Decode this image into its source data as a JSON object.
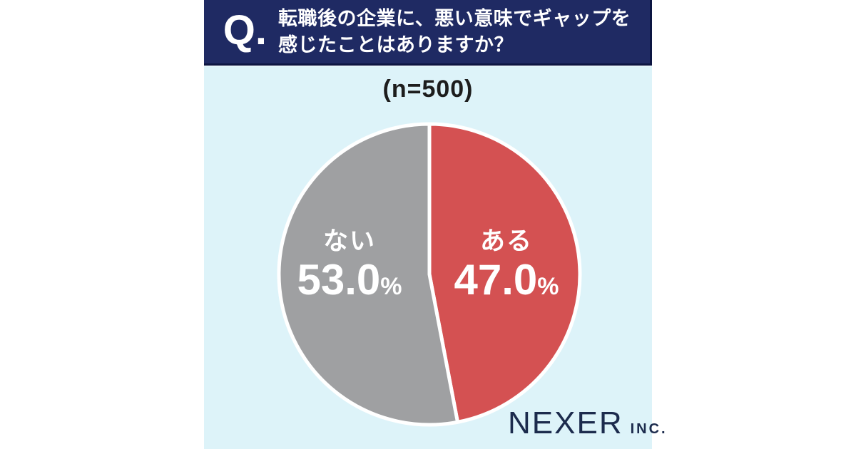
{
  "header": {
    "q_label": "Q.",
    "question_line1": "転職後の企業に、悪い意味でギャップを",
    "question_line2": "感じたことはありますか？"
  },
  "sample_size_label": "(n=500)",
  "chart_data": {
    "type": "pie",
    "title": "転職後の企業に、悪い意味でギャップを感じたことはありますか？",
    "sample_label": "(n=500)",
    "n": 500,
    "start_angle_deg": 0,
    "direction": "clockwise_from_top",
    "divider_color": "#FFFFFF",
    "slices": [
      {
        "key": "aru",
        "label": "ある",
        "value": 47.0,
        "display": "47.0",
        "unit": "%",
        "color": "#D45152"
      },
      {
        "key": "nai",
        "label": "ない",
        "value": 53.0,
        "display": "53.0",
        "unit": "%",
        "color": "#9FA0A2"
      }
    ]
  },
  "logo": {
    "brand": "NEXER",
    "suffix": "INC."
  },
  "colors": {
    "page_bg": "#FFFFFF",
    "header_bg": "#1F2A63",
    "header_edge": "#0C1541",
    "panel_bg": "#DDF3F9",
    "text_on_dark": "#FFFFFF",
    "text_dark": "#1D1D1D",
    "logo_color": "#1C2B4D"
  }
}
